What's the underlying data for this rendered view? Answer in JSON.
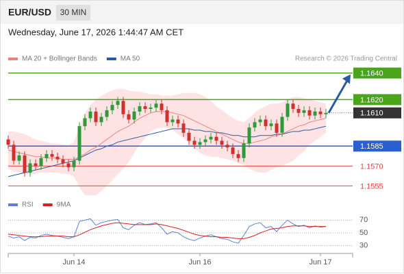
{
  "header": {
    "symbol": "EUR/USD",
    "interval": "30 MIN",
    "timestamp": "Wednesday, June 17, 2026 1:44:47 AM CET"
  },
  "chart_data": [
    {
      "type": "candlestick",
      "credit": "Research © 2026 Trading Central",
      "candles": {
        "up_color": "#2e9a3a",
        "down_color": "#d22f2f",
        "open": [
          1.159,
          1.1586,
          1.1574,
          1.1578,
          1.1565,
          1.1572,
          1.157,
          1.1576,
          1.1579,
          1.1577,
          1.1575,
          1.1572,
          1.1569,
          1.1574,
          1.16,
          1.1606,
          1.1611,
          1.1603,
          1.1607,
          1.1612,
          1.1616,
          1.1619,
          1.1609,
          1.1605,
          1.1611,
          1.1615,
          1.1613,
          1.1614,
          1.1617,
          1.1612,
          1.1603,
          1.1605,
          1.1602,
          1.1595,
          1.1589,
          1.1586,
          1.1588,
          1.159,
          1.1592,
          1.1589,
          1.1586,
          1.1584,
          1.1579,
          1.1576,
          1.1587,
          1.1599,
          1.1603,
          1.1605,
          1.16,
          1.1602,
          1.1595,
          1.1607,
          1.1617,
          1.1613,
          1.161,
          1.1612,
          1.1608,
          1.1611,
          1.1609
        ],
        "high": [
          1.1593,
          1.1589,
          1.1581,
          1.1581,
          1.1575,
          1.1575,
          1.1579,
          1.1582,
          1.1582,
          1.158,
          1.1578,
          1.1575,
          1.1577,
          1.1603,
          1.1609,
          1.1614,
          1.1614,
          1.161,
          1.1615,
          1.1619,
          1.1622,
          1.1622,
          1.1612,
          1.1614,
          1.1618,
          1.1618,
          1.1617,
          1.162,
          1.162,
          1.1615,
          1.1608,
          1.1608,
          1.1605,
          1.1598,
          1.1592,
          1.1591,
          1.1593,
          1.1595,
          1.1595,
          1.1592,
          1.1589,
          1.1587,
          1.1582,
          1.159,
          1.1602,
          1.1606,
          1.1608,
          1.1608,
          1.1605,
          1.1605,
          1.161,
          1.162,
          1.162,
          1.1616,
          1.1615,
          1.1615,
          1.1614,
          1.1614,
          1.1613
        ],
        "low": [
          1.1583,
          1.1571,
          1.1571,
          1.1562,
          1.1562,
          1.1567,
          1.1567,
          1.1573,
          1.1574,
          1.1572,
          1.1569,
          1.1566,
          1.1566,
          1.1571,
          1.1597,
          1.1603,
          1.16,
          1.16,
          1.1604,
          1.1609,
          1.1613,
          1.1606,
          1.1602,
          1.1602,
          1.1608,
          1.161,
          1.161,
          1.1611,
          1.1609,
          1.16,
          1.16,
          1.1599,
          1.1592,
          1.1586,
          1.1583,
          1.1583,
          1.1585,
          1.1587,
          1.1586,
          1.1583,
          1.1581,
          1.1576,
          1.1573,
          1.1573,
          1.1584,
          1.1596,
          1.16,
          1.1597,
          1.1597,
          1.1592,
          1.1592,
          1.1604,
          1.161,
          1.1607,
          1.1607,
          1.1605,
          1.1605,
          1.1606,
          1.1606
        ],
        "close": [
          1.1586,
          1.1574,
          1.1578,
          1.1565,
          1.1572,
          1.157,
          1.1576,
          1.1579,
          1.1577,
          1.1575,
          1.1572,
          1.1569,
          1.1574,
          1.16,
          1.1606,
          1.1611,
          1.1603,
          1.1607,
          1.1612,
          1.1616,
          1.1619,
          1.1609,
          1.1605,
          1.1611,
          1.1615,
          1.1613,
          1.1614,
          1.1617,
          1.1612,
          1.1603,
          1.1605,
          1.1602,
          1.1595,
          1.1589,
          1.1586,
          1.1588,
          1.159,
          1.1592,
          1.1589,
          1.1586,
          1.1584,
          1.1579,
          1.1576,
          1.1587,
          1.1599,
          1.1603,
          1.1605,
          1.16,
          1.1602,
          1.1595,
          1.1607,
          1.1617,
          1.1613,
          1.161,
          1.1612,
          1.1608,
          1.1611,
          1.1609,
          1.161
        ]
      },
      "series": [
        {
          "name": "MA 20 + Bollinger Bands",
          "color": "#f08080",
          "band_color": "#fcdcdc",
          "values": [
            1.1582,
            1.1581,
            1.158,
            1.1579,
            1.1578,
            1.1577,
            1.1577,
            1.1576,
            1.1576,
            1.1576,
            1.1575,
            1.1575,
            1.1575,
            1.1577,
            1.1579,
            1.1582,
            1.1584,
            1.1587,
            1.159,
            1.1593,
            1.1596,
            1.1598,
            1.16,
            1.1603,
            1.1606,
            1.1608,
            1.161,
            1.1611,
            1.1611,
            1.1611,
            1.161,
            1.1609,
            1.1608,
            1.1606,
            1.1604,
            1.1602,
            1.16,
            1.1598,
            1.1596,
            1.1594,
            1.1592,
            1.159,
            1.1588,
            1.1587,
            1.1587,
            1.1588,
            1.1589,
            1.159,
            1.1592,
            1.1593,
            1.1594,
            1.1596,
            1.1598,
            1.16,
            1.1601,
            1.1603,
            1.1604,
            1.1605,
            1.1606
          ],
          "upper": [
            1.1596,
            1.1596,
            1.1595,
            1.1594,
            1.1592,
            1.159,
            1.1589,
            1.1588,
            1.1587,
            1.1587,
            1.1586,
            1.1586,
            1.1588,
            1.16,
            1.161,
            1.1616,
            1.162,
            1.1623,
            1.1625,
            1.1627,
            1.1628,
            1.1628,
            1.1627,
            1.1626,
            1.1626,
            1.1625,
            1.1624,
            1.1624,
            1.1623,
            1.1623,
            1.1623,
            1.1624,
            1.1625,
            1.1625,
            1.1625,
            1.1624,
            1.1622,
            1.1619,
            1.1615,
            1.1612,
            1.1609,
            1.1606,
            1.1604,
            1.1603,
            1.1606,
            1.161,
            1.1613,
            1.1615,
            1.1617,
            1.1617,
            1.1618,
            1.162,
            1.1622,
            1.1622,
            1.1621,
            1.162,
            1.1619,
            1.1618,
            1.1617
          ],
          "lower": [
            1.1568,
            1.1566,
            1.1565,
            1.1564,
            1.1564,
            1.1564,
            1.1565,
            1.1565,
            1.1565,
            1.1565,
            1.1564,
            1.1564,
            1.1562,
            1.1554,
            1.1548,
            1.1548,
            1.1548,
            1.1551,
            1.1555,
            1.1559,
            1.1564,
            1.1568,
            1.1573,
            1.158,
            1.1586,
            1.1591,
            1.1596,
            1.1598,
            1.1599,
            1.1599,
            1.1597,
            1.1594,
            1.1591,
            1.1587,
            1.1583,
            1.158,
            1.1578,
            1.1577,
            1.1577,
            1.1576,
            1.1575,
            1.1574,
            1.1572,
            1.1571,
            1.1568,
            1.1566,
            1.1565,
            1.1565,
            1.1567,
            1.1569,
            1.157,
            1.1572,
            1.1574,
            1.1578,
            1.1581,
            1.1586,
            1.1589,
            1.1592,
            1.1595
          ]
        },
        {
          "name": "MA 50",
          "color": "#2a5aa0",
          "values": [
            1.1562,
            1.1563,
            1.1564,
            1.1565,
            1.1566,
            1.1567,
            1.1568,
            1.1569,
            1.157,
            1.1571,
            1.1572,
            1.1573,
            1.1574,
            1.1576,
            1.1578,
            1.158,
            1.1582,
            1.1583,
            1.1585,
            1.1586,
            1.1588,
            1.1589,
            1.159,
            1.1591,
            1.1592,
            1.1593,
            1.1594,
            1.1595,
            1.1596,
            1.1597,
            1.1598,
            1.1598,
            1.1598,
            1.1598,
            1.1597,
            1.1597,
            1.1596,
            1.1596,
            1.1595,
            1.1595,
            1.1594,
            1.1593,
            1.1593,
            1.1592,
            1.1592,
            1.1592,
            1.1593,
            1.1593,
            1.1593,
            1.1594,
            1.1594,
            1.1595,
            1.1596,
            1.1596,
            1.1597,
            1.1597,
            1.1598,
            1.1599,
            1.16
          ]
        }
      ],
      "levels": [
        {
          "value": 1.164,
          "label": "1.1640",
          "color": "#4aa51c",
          "box": true,
          "line": "solid"
        },
        {
          "value": 1.162,
          "label": "1.1620",
          "color": "#4aa51c",
          "box": true,
          "line": "solid"
        },
        {
          "value": 1.161,
          "label": "1.1610",
          "color": "#333333",
          "box": true,
          "line": "dotted"
        },
        {
          "value": 1.1585,
          "label": "1.1585",
          "color": "#2a5fcf",
          "box": true,
          "line": "solid"
        },
        {
          "value": 1.157,
          "label": "1.1570",
          "color": "#e04545",
          "box": false,
          "line": "solid"
        },
        {
          "value": 1.1555,
          "label": "1.1555",
          "color": "#e04545",
          "box": false,
          "line": "solid"
        }
      ],
      "x_labels": [
        {
          "index": 12,
          "label": "Jun 14"
        },
        {
          "index": 35,
          "label": "Jun 16"
        },
        {
          "index": 57,
          "label": "Jun 17"
        }
      ],
      "ylim": [
        1.1548,
        1.1646
      ]
    },
    {
      "type": "line",
      "series": [
        {
          "name": "RSI",
          "color": "#5b7fd6",
          "values": [
            45,
            42,
            44,
            38,
            43,
            42,
            46,
            48,
            46,
            45,
            43,
            41,
            44,
            68,
            70,
            72,
            62,
            66,
            68,
            70,
            71,
            58,
            55,
            62,
            66,
            63,
            64,
            66,
            58,
            48,
            52,
            50,
            44,
            40,
            38,
            42,
            45,
            47,
            44,
            41,
            40,
            36,
            34,
            46,
            60,
            64,
            66,
            58,
            60,
            52,
            62,
            70,
            64,
            60,
            62,
            58,
            61,
            59,
            60
          ]
        },
        {
          "name": "9MA",
          "color": "#d62020",
          "values": [
            48,
            47,
            46,
            45,
            44,
            44,
            44,
            45,
            45,
            45,
            45,
            44,
            44,
            47,
            51,
            55,
            58,
            61,
            63,
            65,
            66,
            65,
            64,
            63,
            63,
            63,
            63,
            64,
            63,
            61,
            59,
            57,
            54,
            51,
            48,
            46,
            45,
            44,
            44,
            43,
            43,
            42,
            41,
            41,
            43,
            46,
            50,
            53,
            56,
            57,
            58,
            60,
            61,
            61,
            61,
            60,
            60,
            60,
            60
          ]
        }
      ],
      "ylim": [
        20,
        80
      ],
      "yticks": [
        70,
        50,
        30
      ],
      "grid": true
    }
  ]
}
